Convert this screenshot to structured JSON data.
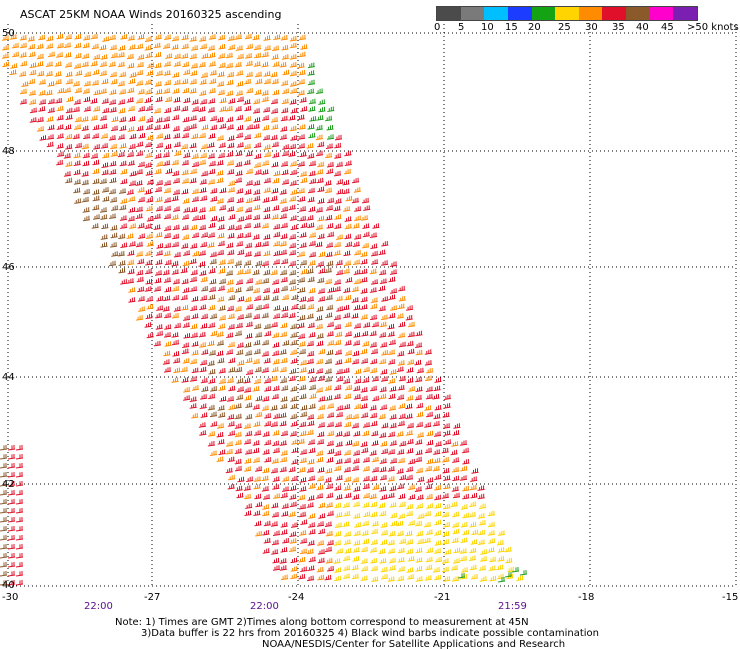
{
  "title": "ASCAT 25KM NOAA Winds 20160325 ascending",
  "legend": {
    "bins": [
      {
        "label": "0",
        "color": "#4b4b4b"
      },
      {
        "label": "5",
        "color": "#7a7a7a"
      },
      {
        "label": "10",
        "color": "#00bfff"
      },
      {
        "label": "15",
        "color": "#1c3cff"
      },
      {
        "label": "20",
        "color": "#13a313"
      },
      {
        "label": "25",
        "color": "#ffd400"
      },
      {
        "label": "30",
        "color": "#ff8c00"
      },
      {
        "label": "35",
        "color": "#e0102a"
      },
      {
        "label": "40",
        "color": "#8b5a2b"
      },
      {
        "label": "45",
        "color": "#ff00cc"
      },
      {
        "label": ">50 knots",
        "color": "#7a1fb0"
      }
    ]
  },
  "axes": {
    "lat_labels": [
      "50",
      "48",
      "46",
      "44",
      "42",
      "40"
    ],
    "lon_labels": [
      "-30",
      "-27",
      "-24",
      "-21",
      "-18",
      "-15"
    ]
  },
  "times": [
    "22:00",
    "22:00",
    "21:59"
  ],
  "notes": {
    "line1": "Note: 1) Times are GMT 2)Times along bottom correspond to measurement at 45N",
    "line2": "3)Data buffer is 22 hrs from 20160325 4) Black wind barbs indicate possible contamination",
    "line3": "NOAA/NESDIS/Center for Satellite Applications and Research"
  }
}
